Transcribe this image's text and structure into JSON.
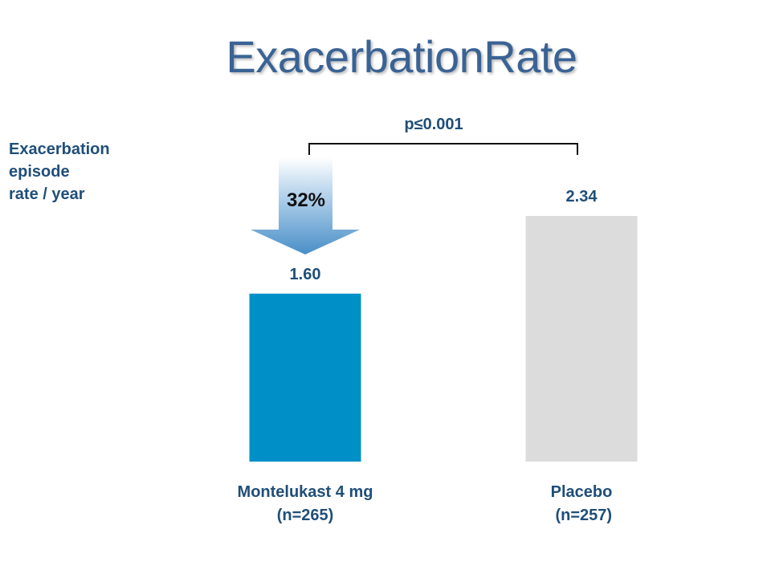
{
  "slide": {
    "title": "ExacerbationRate"
  },
  "chart_data": {
    "type": "bar",
    "title": "ExacerbationRate",
    "ylabel": [
      "Exacerbation",
      "episode",
      "rate / year"
    ],
    "xlabel": "",
    "ylim": [
      0,
      2.34
    ],
    "grid": false,
    "categories": [
      [
        "Montelukast 4 mg",
        "(n=265)"
      ],
      [
        "Placebo",
        " (n=257)"
      ]
    ],
    "values": [
      1.6,
      2.34
    ],
    "value_labels": [
      "1.60",
      "2.34"
    ],
    "colors": [
      "#0090c8",
      "#dcdcdc"
    ],
    "annotations": {
      "p_value": "p≤0.001",
      "reduction": "32%"
    }
  }
}
